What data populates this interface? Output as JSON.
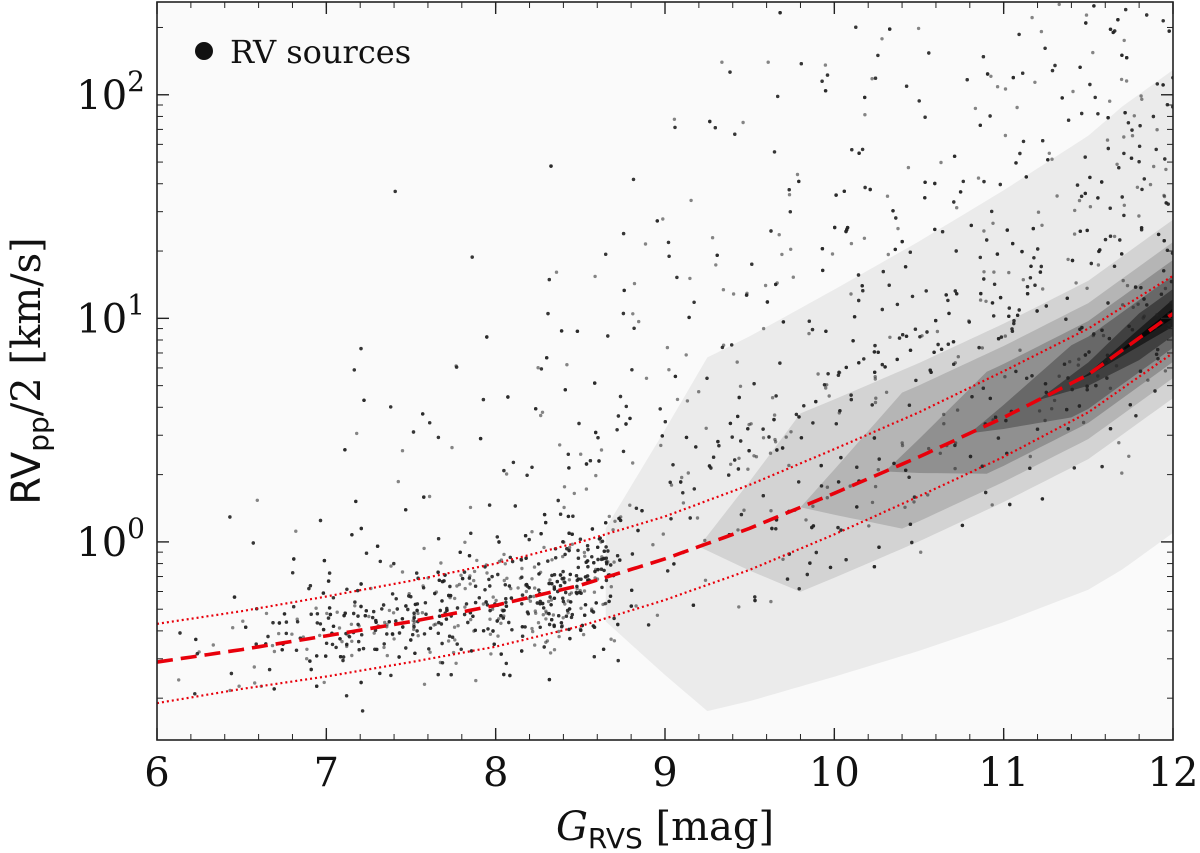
{
  "chart_data": {
    "type": "scatter",
    "title": "",
    "xlabel": {
      "main": "G",
      "sub": "RVS",
      "suffix": " [mag]"
    },
    "ylabel": {
      "main": "RV",
      "sub": "pp",
      "suffix": "/2 [km/s]"
    },
    "xlim": [
      6,
      12
    ],
    "ylim": [
      0.13,
      260
    ],
    "yscale": "log",
    "x_ticks": [
      6,
      7,
      8,
      9,
      10,
      11,
      12
    ],
    "x_tick_labels": [
      "6",
      "7",
      "8",
      "9",
      "10",
      "11",
      "12"
    ],
    "y_ticks": [
      1,
      10,
      100
    ],
    "y_tick_labels": [
      {
        "base": "10",
        "exp": "0"
      },
      {
        "base": "10",
        "exp": "1"
      },
      {
        "base": "10",
        "exp": "2"
      }
    ],
    "grid": false,
    "legend": {
      "position": "top-left",
      "entries": [
        "RV sources"
      ]
    },
    "colors": {
      "points": "#222222",
      "fit": "#e8000b",
      "background": "#fafafa",
      "density": "#000000"
    },
    "series": [
      {
        "name": "RV sources",
        "kind": "scatter-cloud",
        "description_values": "trend approx. median curve with scatter; dense near G=11.7",
        "median_x": [
          6,
          7,
          8,
          8.5,
          9,
          9.5,
          10,
          10.5,
          11,
          11.5,
          12
        ],
        "median_y": [
          0.3,
          0.38,
          0.52,
          0.7,
          0.95,
          1.35,
          2.0,
          3.0,
          4.5,
          6.5,
          9.5
        ],
        "count": 9000
      },
      {
        "kind": "fit-median",
        "style": "dashed",
        "x": [
          6,
          6.5,
          7,
          7.5,
          8,
          8.5,
          9,
          9.5,
          10,
          10.5,
          11,
          11.5,
          12
        ],
        "y": [
          0.29,
          0.33,
          0.38,
          0.44,
          0.52,
          0.64,
          0.84,
          1.15,
          1.65,
          2.4,
          3.6,
          5.6,
          10.5
        ]
      },
      {
        "kind": "fit-upper",
        "style": "dotted",
        "x": [
          6,
          6.5,
          7,
          7.5,
          8,
          8.5,
          9,
          9.5,
          10,
          10.5,
          11,
          11.5,
          12
        ],
        "y": [
          0.43,
          0.49,
          0.57,
          0.67,
          0.8,
          1.0,
          1.3,
          1.8,
          2.6,
          3.8,
          5.8,
          9.0,
          15.5
        ]
      },
      {
        "kind": "fit-lower",
        "style": "dotted",
        "x": [
          6,
          6.5,
          7,
          7.5,
          8,
          8.5,
          9,
          9.5,
          10,
          10.5,
          11,
          11.5,
          12
        ],
        "y": [
          0.19,
          0.22,
          0.25,
          0.29,
          0.34,
          0.42,
          0.55,
          0.75,
          1.08,
          1.6,
          2.4,
          3.8,
          7.0
        ]
      }
    ]
  }
}
